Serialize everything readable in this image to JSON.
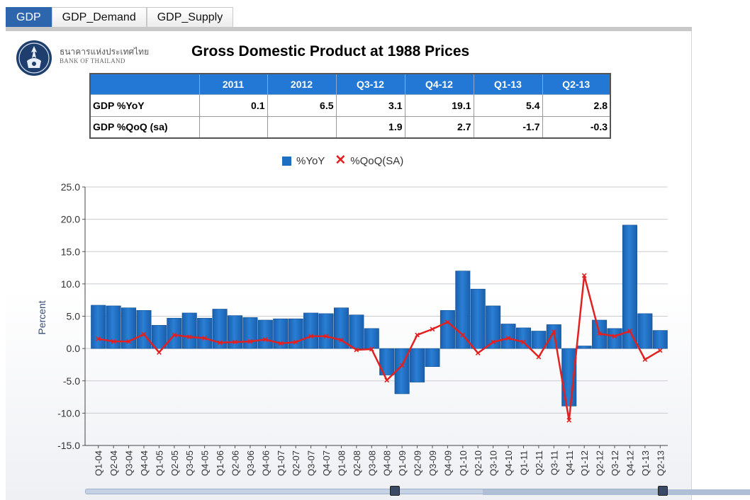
{
  "tabs": [
    {
      "label": "GDP",
      "active": true
    },
    {
      "label": "GDP_Demand",
      "active": false
    },
    {
      "label": "GDP_Supply",
      "active": false
    }
  ],
  "bank": {
    "name_th": "ธนาคารแห่งประเทศไทย",
    "name_en": "BANK OF THAILAND"
  },
  "title": "Gross Domestic Product at 1988 Prices",
  "table": {
    "headers": [
      "",
      "2011",
      "2012",
      "Q3-12",
      "Q4-12",
      "Q1-13",
      "Q2-13"
    ],
    "rows": [
      {
        "label": "GDP %YoY",
        "values": [
          "0.1",
          "6.5",
          "3.1",
          "19.1",
          "5.4",
          "2.8"
        ]
      },
      {
        "label": "GDP %QoQ (sa)",
        "values": [
          "",
          "",
          "1.9",
          "2.7",
          "-1.7",
          "-0.3"
        ]
      }
    ]
  },
  "chart_data": {
    "type": "bar",
    "categories": [
      "Q1-04",
      "Q2-04",
      "Q3-04",
      "Q4-04",
      "Q1-05",
      "Q2-05",
      "Q3-05",
      "Q4-05",
      "Q1-06",
      "Q2-06",
      "Q3-06",
      "Q4-06",
      "Q1-07",
      "Q2-07",
      "Q3-07",
      "Q4-07",
      "Q1-08",
      "Q2-08",
      "Q3-08",
      "Q4-08",
      "Q1-09",
      "Q2-09",
      "Q3-09",
      "Q4-09",
      "Q1-10",
      "Q2-10",
      "Q3-10",
      "Q4-10",
      "Q1-11",
      "Q2-11",
      "Q3-11",
      "Q4-11",
      "Q1-12",
      "Q2-12",
      "Q3-12",
      "Q4-12",
      "Q1-13",
      "Q2-13"
    ],
    "series": [
      {
        "name": "%YoY",
        "kind": "bar",
        "color": "#1d6fc2",
        "values": [
          6.7,
          6.6,
          6.3,
          5.9,
          3.6,
          4.7,
          5.5,
          4.7,
          6.1,
          5.1,
          4.8,
          4.4,
          4.6,
          4.6,
          5.5,
          5.4,
          6.3,
          5.2,
          3.1,
          -4.1,
          -7.0,
          -5.2,
          -2.8,
          5.9,
          12.0,
          9.2,
          6.6,
          3.8,
          3.2,
          2.7,
          3.7,
          -8.9,
          0.4,
          4.4,
          3.1,
          19.1,
          5.4,
          2.8
        ]
      },
      {
        "name": "%QoQ(SA)",
        "kind": "line",
        "color": "#e32020",
        "values": [
          1.5,
          1.1,
          1.1,
          2.2,
          -0.6,
          2.1,
          1.8,
          1.6,
          0.9,
          1.0,
          1.1,
          1.4,
          0.8,
          1.0,
          1.9,
          1.9,
          1.3,
          -0.2,
          -0.1,
          -4.9,
          -2.6,
          2.1,
          3.0,
          4.1,
          2.1,
          -0.7,
          1.0,
          1.6,
          1.0,
          -1.3,
          2.6,
          -11.1,
          11.3,
          2.3,
          1.9,
          2.7,
          -1.7,
          -0.3
        ]
      }
    ],
    "xlabel": "",
    "ylabel": "Percent",
    "ylim": [
      -15,
      25
    ],
    "yticks": [
      "-15.0",
      "-10.0",
      "-5.0",
      "0.0",
      "5.0",
      "10.0",
      "15.0",
      "20.0",
      "25.0"
    ],
    "grid": true,
    "legend": "top-center"
  }
}
